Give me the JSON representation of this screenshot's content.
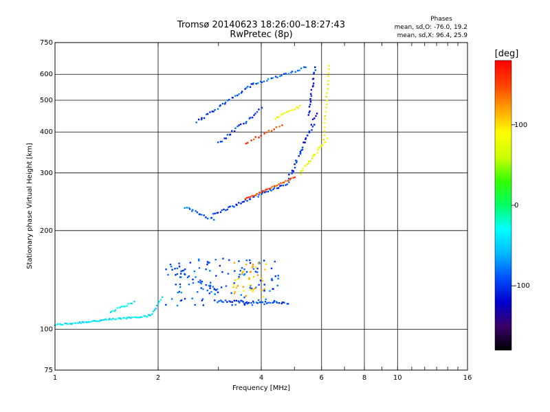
{
  "chart_data": {
    "type": "scatter",
    "title": "Tromsø 20140623 18:26:00–18:27:43",
    "subtitle": "RwPretec (8p)",
    "xlabel": "Frequency [MHz]",
    "ylabel": "Stationary phase Virtual Height [km]",
    "x_scale": "log",
    "y_scale": "log",
    "xlim": [
      1,
      16
    ],
    "ylim": [
      75,
      750
    ],
    "x_ticks": [
      1,
      2,
      4,
      6,
      8,
      10,
      16
    ],
    "y_ticks": [
      75,
      100,
      200,
      300,
      400,
      500,
      600,
      750
    ],
    "grid": true,
    "annotation": {
      "title": "Phases",
      "line1": "mean, sd,O: -76.0, 19.2",
      "line2": "mean, sd,X:  96.4, 25.9"
    },
    "colorbar": {
      "label": "[deg]",
      "range": [
        -180,
        180
      ],
      "ticks": [
        100,
        0,
        -100
      ],
      "colors": [
        "#000000",
        "#3a006a",
        "#0000cc",
        "#0050ff",
        "#00b8ff",
        "#00ffff",
        "#00ff66",
        "#33ff00",
        "#ccff00",
        "#ffff00",
        "#ffa000",
        "#ff4000",
        "#ff0000"
      ]
    },
    "traces": [
      {
        "f0": 1.0,
        "f1": 1.9,
        "h0": 103,
        "h1": 110,
        "count": 60,
        "phase": -40,
        "jitter": 0.012
      },
      {
        "f0": 1.9,
        "f1": 2.05,
        "h0": 110,
        "h1": 125,
        "count": 10,
        "phase": -45,
        "jitter": 0.015
      },
      {
        "f0": 1.45,
        "f1": 1.7,
        "h0": 113,
        "h1": 121,
        "count": 14,
        "phase": -35,
        "jitter": 0.012
      },
      {
        "f0": 2.2,
        "f1": 3.0,
        "h0": 152,
        "h1": 130,
        "count": 30,
        "phase": -90,
        "jitter": 0.06
      },
      {
        "f0": 3.0,
        "f1": 4.8,
        "h0": 122,
        "h1": 120,
        "count": 40,
        "phase": -95,
        "jitter": 0.015
      },
      {
        "f0": 2.4,
        "f1": 2.9,
        "h0": 235,
        "h1": 216,
        "count": 18,
        "phase": -80,
        "jitter": 0.02
      },
      {
        "f0": 2.9,
        "f1": 4.8,
        "h0": 224,
        "h1": 280,
        "count": 45,
        "phase": -100,
        "jitter": 0.015
      },
      {
        "f0": 4.8,
        "f1": 5.8,
        "h0": 285,
        "h1": 450,
        "count": 35,
        "phase": -105,
        "jitter": 0.03
      },
      {
        "f0": 5.5,
        "f1": 5.75,
        "h0": 450,
        "h1": 630,
        "count": 20,
        "phase": -110,
        "jitter": 0.02
      },
      {
        "f0": 3.6,
        "f1": 5.0,
        "h0": 250,
        "h1": 290,
        "count": 30,
        "phase": 150,
        "jitter": 0.01
      },
      {
        "f0": 5.2,
        "f1": 6.2,
        "h0": 300,
        "h1": 380,
        "count": 25,
        "phase": 80,
        "jitter": 0.02
      },
      {
        "f0": 6.1,
        "f1": 6.3,
        "h0": 380,
        "h1": 640,
        "count": 20,
        "phase": 90,
        "jitter": 0.015
      },
      {
        "f0": 2.6,
        "f1": 3.8,
        "h0": 430,
        "h1": 560,
        "count": 32,
        "phase": -95,
        "jitter": 0.02
      },
      {
        "f0": 3.8,
        "f1": 5.4,
        "h0": 560,
        "h1": 630,
        "count": 25,
        "phase": -85,
        "jitter": 0.015
      },
      {
        "f0": 3.0,
        "f1": 4.0,
        "h0": 370,
        "h1": 470,
        "count": 25,
        "phase": -95,
        "jitter": 0.02
      },
      {
        "f0": 3.6,
        "f1": 4.6,
        "h0": 370,
        "h1": 420,
        "count": 15,
        "phase": 150,
        "jitter": 0.015
      },
      {
        "f0": 4.4,
        "f1": 5.2,
        "h0": 440,
        "h1": 480,
        "count": 14,
        "phase": 85,
        "jitter": 0.01
      },
      {
        "f0": 2.1,
        "f1": 4.5,
        "h0": 118,
        "h1": 165,
        "count": 120,
        "phase": -90,
        "jitter": 0.06,
        "cloud": true
      },
      {
        "f0": 3.3,
        "f1": 4.2,
        "h0": 125,
        "h1": 160,
        "count": 40,
        "phase": 110,
        "jitter": 0.06,
        "cloud": true
      }
    ]
  }
}
